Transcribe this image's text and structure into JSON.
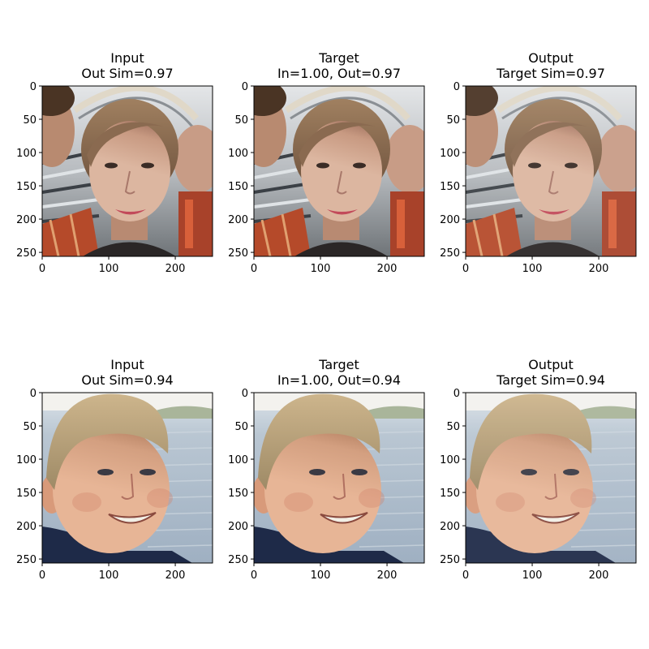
{
  "figure": {
    "background": "#ffffff",
    "text_color": "#000000"
  },
  "chart_data": [
    {
      "type": "image",
      "title": "Input\nOut Sim=0.97",
      "row": 0,
      "col": 0,
      "xticks": [
        0,
        100,
        200
      ],
      "yticks": [
        0,
        50,
        100,
        150,
        200,
        250
      ],
      "xlim": [
        0,
        256
      ],
      "ylim": [
        256,
        0
      ],
      "image_subject": "woman-face-with-people-background",
      "palette": [
        "#b08a72",
        "#c8a08a",
        "#6a4a3a",
        "#cfd3d6",
        "#b54a2a"
      ]
    },
    {
      "type": "image",
      "title": "Target\nIn=1.00, Out=0.97",
      "row": 0,
      "col": 1,
      "xticks": [
        0,
        100,
        200
      ],
      "yticks": [
        0,
        50,
        100,
        150,
        200,
        250
      ],
      "xlim": [
        0,
        256
      ],
      "ylim": [
        256,
        0
      ],
      "image_subject": "woman-face-with-people-background",
      "palette": [
        "#b08a72",
        "#c8a08a",
        "#6a4a3a",
        "#cfd3d6",
        "#b54a2a"
      ]
    },
    {
      "type": "image",
      "title": "Output\nTarget Sim=0.97",
      "row": 0,
      "col": 2,
      "xticks": [
        0,
        100,
        200
      ],
      "yticks": [
        0,
        50,
        100,
        150,
        200,
        250
      ],
      "xlim": [
        0,
        256
      ],
      "ylim": [
        256,
        0
      ],
      "image_subject": "woman-face-with-people-background",
      "palette": [
        "#b08a72",
        "#c8a08a",
        "#6a4a3a",
        "#cfd3d6",
        "#b54a2a"
      ]
    },
    {
      "type": "image",
      "title": "Input\nOut Sim=0.94",
      "row": 1,
      "col": 0,
      "xticks": [
        0,
        100,
        200
      ],
      "yticks": [
        0,
        50,
        100,
        150,
        200,
        250
      ],
      "xlim": [
        0,
        256
      ],
      "ylim": [
        256,
        0
      ],
      "image_subject": "smiling-boy-face-with-water-background",
      "palette": [
        "#d8a383",
        "#b89a6a",
        "#a8b8c8",
        "#1e2a48",
        "#f5f3ee"
      ]
    },
    {
      "type": "image",
      "title": "Target\nIn=1.00, Out=0.94",
      "row": 1,
      "col": 1,
      "xticks": [
        0,
        100,
        200
      ],
      "yticks": [
        0,
        50,
        100,
        150,
        200,
        250
      ],
      "xlim": [
        0,
        256
      ],
      "ylim": [
        256,
        0
      ],
      "image_subject": "smiling-boy-face-with-water-background",
      "palette": [
        "#d8a383",
        "#b89a6a",
        "#a8b8c8",
        "#1e2a48",
        "#f5f3ee"
      ]
    },
    {
      "type": "image",
      "title": "Output\nTarget Sim=0.94",
      "row": 1,
      "col": 2,
      "xticks": [
        0,
        100,
        200
      ],
      "yticks": [
        0,
        50,
        100,
        150,
        200,
        250
      ],
      "xlim": [
        0,
        256
      ],
      "ylim": [
        256,
        0
      ],
      "image_subject": "smiling-boy-face-with-water-background",
      "palette": [
        "#d8a383",
        "#b89a6a",
        "#a8b8c8",
        "#1e2a48",
        "#f5f3ee"
      ]
    }
  ]
}
